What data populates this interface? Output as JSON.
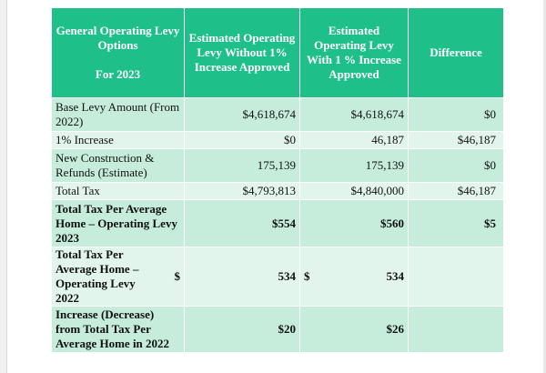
{
  "header": {
    "col1_line1": "General Operating Levy Options",
    "col1_line2": "For 2023",
    "col2": "Estimated Operating Levy Without 1% Increase Approved",
    "col3": "Estimated Operating Levy With 1 % Increase Approved",
    "col4": "Difference"
  },
  "rows": [
    {
      "label": "Base Levy Amount (From 2022)",
      "without": "$4,618,674",
      "with": "$4,618,674",
      "diff": "$0"
    },
    {
      "label": "1% Increase",
      "without": "$0",
      "with": "46,187",
      "diff": "$46,187"
    },
    {
      "label": "New Construction & Refunds (Estimate)",
      "without": "175,139",
      "with": "175,139",
      "diff": "$0"
    },
    {
      "label": "Total Tax",
      "without": "$4,793,813",
      "with": "$4,840,000",
      "diff": "$46,187"
    },
    {
      "label": "Total Tax Per Average Home – Operating Levy 2023",
      "without": "$554",
      "with": "$560",
      "diff": "$5"
    },
    {
      "label": "Total Tax Per Average Home – Operating Levy 2022",
      "label_dollar": "$",
      "without": "534",
      "with_dollar": "$",
      "with": "534",
      "diff": ""
    },
    {
      "label": "Increase (Decrease) from Total Tax Per Average Home in 2022",
      "without": "$20",
      "with": "$26",
      "diff": ""
    }
  ],
  "colors": {
    "header_bg": "#1fbf8a",
    "row_band_dark": "#c6ecdb",
    "row_band_light": "#e2f5ec"
  }
}
